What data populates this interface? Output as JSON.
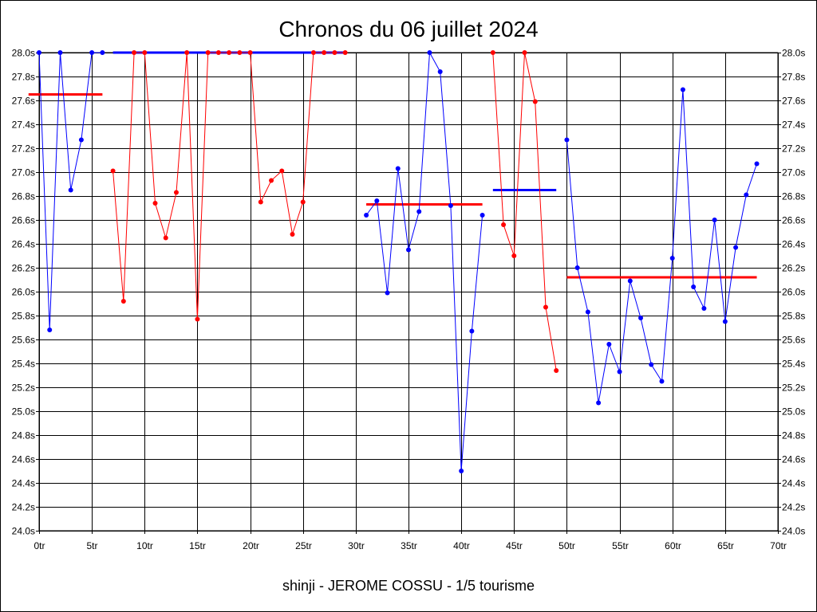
{
  "chart_data": {
    "type": "line",
    "title": "Chronos du 06 juillet 2024",
    "footer": "shinji - JEROME COSSU - 1/5 tourisme",
    "xlabel": "",
    "ylabel": "",
    "xlim": [
      0,
      70
    ],
    "ylim": [
      24.0,
      28.0
    ],
    "grid": true,
    "x_tick_values": [
      0,
      5,
      10,
      15,
      20,
      25,
      30,
      35,
      40,
      45,
      50,
      55,
      60,
      65,
      70
    ],
    "x_tick_labels": [
      "0tr",
      "5tr",
      "10tr",
      "15tr",
      "20tr",
      "25tr",
      "30tr",
      "35tr",
      "40tr",
      "45tr",
      "50tr",
      "55tr",
      "60tr",
      "65tr",
      "70tr"
    ],
    "y_tick_values": [
      24.0,
      24.2,
      24.4,
      24.6,
      24.8,
      25.0,
      25.2,
      25.4,
      25.6,
      25.8,
      26.0,
      26.2,
      26.4,
      26.6,
      26.8,
      27.0,
      27.2,
      27.4,
      27.6,
      27.8,
      28.0
    ],
    "y_tick_labels": [
      "24.0s",
      "24.2s",
      "24.4s",
      "24.6s",
      "24.8s",
      "25.0s",
      "25.2s",
      "25.4s",
      "25.6s",
      "25.8s",
      "26.0s",
      "26.2s",
      "26.4s",
      "26.6s",
      "26.8s",
      "27.0s",
      "27.2s",
      "27.4s",
      "27.6s",
      "27.8s",
      "28.0s"
    ],
    "series": [
      {
        "color": "#0000ff",
        "x": [
          0,
          1,
          2,
          3,
          4,
          5,
          6
        ],
        "y": [
          28.0,
          25.68,
          28.0,
          26.85,
          27.27,
          28.0,
          28.0
        ]
      },
      {
        "color": "#ff0000",
        "x": [
          7,
          8,
          9,
          10,
          11,
          12,
          13,
          14,
          15,
          16,
          17,
          18,
          19,
          20,
          21,
          22,
          23,
          24,
          25,
          26,
          27,
          28,
          29
        ],
        "y": [
          27.01,
          25.92,
          28.0,
          28.0,
          26.74,
          26.45,
          26.83,
          28.0,
          25.77,
          28.0,
          28.0,
          28.0,
          28.0,
          28.0,
          26.75,
          26.93,
          27.01,
          26.48,
          26.75,
          28.0,
          28.0,
          28.0,
          28.0
        ]
      },
      {
        "color": "#0000ff",
        "x": [
          31,
          32,
          33,
          34,
          35,
          36,
          37,
          38,
          39,
          40,
          41,
          42
        ],
        "y": [
          26.64,
          26.76,
          25.99,
          27.03,
          26.35,
          26.67,
          28.0,
          27.84,
          26.72,
          24.5,
          25.67,
          26.64
        ]
      },
      {
        "color": "#ff0000",
        "x": [
          43,
          44,
          45,
          46,
          47,
          48,
          49
        ],
        "y": [
          28.0,
          26.56,
          26.3,
          28.0,
          27.59,
          25.87,
          25.34
        ]
      },
      {
        "color": "#0000ff",
        "x": [
          50,
          51,
          52,
          53,
          54,
          55,
          56,
          57,
          58,
          59,
          60,
          61,
          62,
          63,
          64,
          65,
          66,
          67,
          68
        ],
        "y": [
          27.27,
          26.2,
          25.83,
          25.07,
          25.56,
          25.33,
          26.09,
          25.78,
          25.39,
          25.25,
          26.28,
          27.69,
          26.04,
          25.86,
          26.6,
          25.75,
          26.37,
          26.81,
          27.07
        ]
      }
    ],
    "average_lines": [
      {
        "color": "#ff0000",
        "x_start": -1,
        "x_end": 6,
        "y": 27.65
      },
      {
        "color": "#0000ff",
        "x_start": 7,
        "x_end": 29,
        "y": 28.0
      },
      {
        "color": "#ff0000",
        "x_start": 31,
        "x_end": 42,
        "y": 26.73
      },
      {
        "color": "#0000ff",
        "x_start": 43,
        "x_end": 49,
        "y": 26.85
      },
      {
        "color": "#ff0000",
        "x_start": 50,
        "x_end": 68,
        "y": 26.12
      }
    ]
  }
}
